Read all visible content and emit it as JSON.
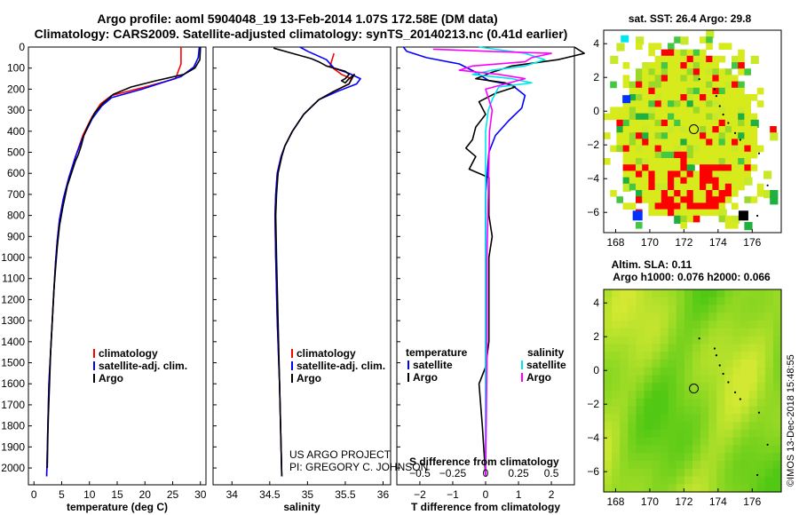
{
  "header": {
    "line1": "Argo profile: aoml 5904048_19 13-Feb-2014 1.07S 172.58E (DM data)",
    "line2": "Climatology: CARS2009. Satellite-adjusted climatology: synTS_20140213.nc (0.41d earlier)"
  },
  "credit": {
    "line1": "US ARGO PROJECT",
    "line2": "PI: GREGORY C. JOHNSON"
  },
  "timestamp": "©IMOS 13-Dec-2018 15:48:55",
  "colors": {
    "climatology": "#ff0000",
    "satellite": "#0000ff",
    "argo": "#000000",
    "sat_salinity": "#00e5ee",
    "argo_salinity": "#ff00ff"
  },
  "chart_data": [
    {
      "id": "temperature",
      "type": "line",
      "xlabel": "temperature (deg C)",
      "ylabel": "",
      "xlim": [
        -1,
        31
      ],
      "ylim": [
        2080,
        0
      ],
      "xticks": [
        0,
        5,
        10,
        15,
        20,
        25,
        30
      ],
      "yticks": [
        0,
        100,
        200,
        300,
        400,
        500,
        600,
        700,
        800,
        900,
        1000,
        1100,
        1200,
        1300,
        1400,
        1500,
        1600,
        1700,
        1800,
        1900,
        2000
      ],
      "legend": [
        "climatology",
        "satellite-adj. clim.",
        "Argo"
      ],
      "series": [
        {
          "name": "climatology",
          "color": "#ff0000",
          "points": [
            [
              26.5,
              0
            ],
            [
              26.5,
              80
            ],
            [
              25.5,
              150
            ],
            [
              20,
              190
            ],
            [
              14,
              230
            ],
            [
              12,
              270
            ],
            [
              10.5,
              330
            ],
            [
              8.8,
              420
            ],
            [
              7.5,
              520
            ],
            [
              6.3,
              620
            ],
            [
              5.3,
              720
            ],
            [
              4.6,
              820
            ],
            [
              4.2,
              920
            ],
            [
              3.9,
              1020
            ],
            [
              3.6,
              1150
            ],
            [
              3.3,
              1300
            ],
            [
              3,
              1450
            ],
            [
              2.7,
              1600
            ],
            [
              2.5,
              1800
            ],
            [
              2.3,
              2040
            ]
          ]
        },
        {
          "name": "satellite-adj. clim.",
          "color": "#0000ff",
          "points": [
            [
              29.8,
              0
            ],
            [
              29.6,
              50
            ],
            [
              28.8,
              95
            ],
            [
              26.5,
              140
            ],
            [
              19.5,
              200
            ],
            [
              14,
              240
            ],
            [
              12.2,
              280
            ],
            [
              10.5,
              340
            ],
            [
              8.8,
              430
            ],
            [
              7.5,
              520
            ],
            [
              6.3,
              620
            ],
            [
              5.3,
              720
            ],
            [
              4.6,
              820
            ],
            [
              4.2,
              920
            ],
            [
              3.9,
              1020
            ],
            [
              3.6,
              1150
            ],
            [
              3.3,
              1300
            ],
            [
              3,
              1450
            ],
            [
              2.7,
              1600
            ],
            [
              2.5,
              1800
            ],
            [
              2.3,
              2040
            ]
          ]
        },
        {
          "name": "Argo",
          "color": "#000000",
          "points": [
            [
              30,
              0
            ],
            [
              29.9,
              60
            ],
            [
              29,
              100
            ],
            [
              27,
              130
            ],
            [
              22,
              160
            ],
            [
              17.5,
              190
            ],
            [
              14.3,
              225
            ],
            [
              12.5,
              265
            ],
            [
              11,
              310
            ],
            [
              9.8,
              370
            ],
            [
              9,
              420
            ],
            [
              8.5,
              470
            ],
            [
              8,
              510
            ],
            [
              7.5,
              540
            ],
            [
              7,
              580
            ],
            [
              6,
              660
            ],
            [
              5.2,
              760
            ],
            [
              4.6,
              850
            ],
            [
              4.2,
              950
            ],
            [
              3.9,
              1050
            ],
            [
              3.6,
              1150
            ],
            [
              3.3,
              1300
            ],
            [
              3,
              1450
            ],
            [
              2.8,
              1600
            ],
            [
              2.6,
              1750
            ],
            [
              2.5,
              1850
            ],
            [
              2.4,
              2000
            ]
          ]
        }
      ]
    },
    {
      "id": "salinity",
      "type": "line",
      "xlabel": "salinity",
      "ylabel": "",
      "xlim": [
        33.75,
        36.1
      ],
      "ylim": [
        2080,
        0
      ],
      "xticks": [
        34,
        34.5,
        35,
        35.5,
        36
      ],
      "legend": [
        "climatology",
        "satellite-adj. clim.",
        "Argo"
      ],
      "series": [
        {
          "name": "climatology",
          "color": "#ff0000",
          "points": [
            [
              35.35,
              30
            ],
            [
              35.3,
              90
            ],
            [
              35.45,
              130
            ],
            [
              35.58,
              150
            ],
            [
              35.55,
              175
            ],
            [
              35.35,
              210
            ],
            [
              35.15,
              250
            ],
            [
              34.95,
              320
            ],
            [
              34.8,
              400
            ],
            [
              34.7,
              470
            ],
            [
              34.65,
              520
            ],
            [
              34.6,
              600
            ],
            [
              34.58,
              700
            ],
            [
              34.57,
              800
            ],
            [
              34.58,
              1000
            ],
            [
              34.6,
              1300
            ],
            [
              34.63,
              1600
            ],
            [
              34.65,
              1900
            ],
            [
              34.66,
              2040
            ]
          ]
        },
        {
          "name": "satellite-adj. clim.",
          "color": "#0000ff",
          "points": [
            [
              34.9,
              0
            ],
            [
              35,
              20
            ],
            [
              35.25,
              60
            ],
            [
              35.35,
              100
            ],
            [
              35.55,
              125
            ],
            [
              35.7,
              150
            ],
            [
              35.65,
              175
            ],
            [
              35.4,
              210
            ],
            [
              35.15,
              250
            ],
            [
              34.95,
              320
            ],
            [
              34.8,
              400
            ],
            [
              34.7,
              470
            ],
            [
              34.65,
              520
            ],
            [
              34.6,
              600
            ],
            [
              34.58,
              700
            ],
            [
              34.57,
              800
            ],
            [
              34.58,
              1000
            ],
            [
              34.6,
              1300
            ],
            [
              34.63,
              1600
            ],
            [
              34.65,
              1900
            ],
            [
              34.66,
              2040
            ]
          ]
        },
        {
          "name": "Argo",
          "color": "#000000",
          "points": [
            [
              34.55,
              5
            ],
            [
              34.8,
              30
            ],
            [
              35.05,
              55
            ],
            [
              35.15,
              70
            ],
            [
              35.25,
              90
            ],
            [
              35.35,
              100
            ],
            [
              35.5,
              115
            ],
            [
              35.55,
              130
            ],
            [
              35.5,
              150
            ],
            [
              35.45,
              160
            ],
            [
              35.5,
              170
            ],
            [
              35.55,
              150
            ],
            [
              35.62,
              130
            ],
            [
              35.55,
              175
            ],
            [
              35.35,
              210
            ],
            [
              35.15,
              250
            ],
            [
              34.95,
              320
            ],
            [
              34.8,
              400
            ],
            [
              34.7,
              470
            ],
            [
              34.66,
              520
            ],
            [
              34.61,
              600
            ],
            [
              34.59,
              700
            ],
            [
              34.58,
              800
            ],
            [
              34.59,
              1000
            ],
            [
              34.61,
              1300
            ],
            [
              34.63,
              1600
            ],
            [
              34.65,
              1900
            ],
            [
              34.66,
              2040
            ]
          ]
        }
      ]
    },
    {
      "id": "differences",
      "type": "line",
      "xlabel": "T difference from climatology",
      "xlabel_top": "S difference from climatology",
      "xlim": [
        -2.7,
        2.7
      ],
      "ylim": [
        2080,
        0
      ],
      "xticks": [
        -2,
        -1,
        0,
        1,
        2
      ],
      "xticks_salinity": [
        -0.5,
        -0.25,
        0,
        0.25,
        0.5
      ],
      "legend_temperature": {
        "title": "temperature",
        "items": [
          "satellite",
          "Argo"
        ]
      },
      "legend_salinity": {
        "title": "salinity",
        "items": [
          "satellite",
          "Argo"
        ]
      },
      "series": [
        {
          "name": "temperature satellite",
          "color": "#0000ff",
          "points": [
            [
              -2.5,
              0
            ],
            [
              -2.4,
              20
            ],
            [
              -1.8,
              50
            ],
            [
              -0.8,
              80
            ],
            [
              -0.3,
              120
            ],
            [
              0.1,
              160
            ],
            [
              0.8,
              180
            ],
            [
              1.2,
              230
            ],
            [
              1.1,
              290
            ],
            [
              0.7,
              350
            ],
            [
              0.3,
              420
            ],
            [
              0.1,
              500
            ],
            [
              0,
              700
            ],
            [
              0,
              1000
            ],
            [
              0,
              1500
            ],
            [
              0,
              2040
            ]
          ]
        },
        {
          "name": "temperature Argo",
          "color": "#000000",
          "points": [
            [
              2.7,
              0
            ],
            [
              3,
              30
            ],
            [
              2.2,
              60
            ],
            [
              0.8,
              90
            ],
            [
              0.2,
              120
            ],
            [
              -0.3,
              150
            ],
            [
              0.6,
              170
            ],
            [
              0.9,
              190
            ],
            [
              0.3,
              220
            ],
            [
              -0.2,
              260
            ],
            [
              0,
              320
            ],
            [
              -0.3,
              380
            ],
            [
              -0.4,
              440
            ],
            [
              -0.6,
              480
            ],
            [
              -0.3,
              520
            ],
            [
              -0.5,
              580
            ],
            [
              0.1,
              620
            ],
            [
              0.1,
              800
            ],
            [
              0.2,
              900
            ],
            [
              0.1,
              1000
            ],
            [
              0.1,
              1400
            ],
            [
              0,
              1520
            ],
            [
              -0.2,
              1600
            ],
            [
              -0.1,
              1800
            ],
            [
              0,
              2040
            ]
          ]
        },
        {
          "name": "salinity satellite",
          "color": "#00e5ee",
          "points": [
            [
              -0.05,
              0
            ],
            [
              0.3,
              30
            ],
            [
              0.45,
              60
            ],
            [
              0.3,
              90
            ],
            [
              0.05,
              110
            ],
            [
              -0.1,
              130
            ],
            [
              0.2,
              150
            ],
            [
              0.35,
              170
            ],
            [
              0.1,
              190
            ],
            [
              0.05,
              250
            ],
            [
              0.02,
              300
            ],
            [
              0,
              400
            ],
            [
              0,
              1500
            ],
            [
              0,
              2040
            ]
          ]
        },
        {
          "name": "salinity Argo",
          "color": "#ff00ff",
          "points": [
            [
              -0.4,
              10
            ],
            [
              0,
              20
            ],
            [
              0.5,
              30
            ],
            [
              0.35,
              50
            ],
            [
              0.3,
              70
            ],
            [
              -0.1,
              90
            ],
            [
              -0.2,
              110
            ],
            [
              0.1,
              130
            ],
            [
              0.3,
              150
            ],
            [
              0,
              200
            ],
            [
              0.05,
              300
            ],
            [
              0.03,
              400
            ],
            [
              0.02,
              700
            ],
            [
              0.01,
              1000
            ],
            [
              0.01,
              1500
            ],
            [
              0,
              2040
            ]
          ]
        }
      ]
    },
    {
      "id": "sst_map",
      "type": "heatmap",
      "title": "sat. SST: 26.4 Argo: 29.8",
      "xticks": [
        168,
        170,
        172,
        174,
        176
      ],
      "yticks": [
        4,
        2,
        0,
        -2,
        -4,
        -6
      ],
      "xlim": [
        167.3,
        177.7
      ],
      "ylim": [
        -7.2,
        4.8
      ],
      "marker": [
        172.58,
        -1.07
      ],
      "land_points": [
        [
          173.8,
          1.3
        ],
        [
          173.9,
          0.9
        ],
        [
          174.1,
          0.3
        ],
        [
          174.3,
          -0.2
        ],
        [
          174.6,
          -0.7
        ],
        [
          175,
          -1.3
        ],
        [
          175.3,
          -1.7
        ],
        [
          176.4,
          -2.5
        ],
        [
          172.9,
          1.9
        ],
        [
          176.9,
          -4.4
        ],
        [
          176.3,
          -6.2
        ]
      ]
    },
    {
      "id": "ssh_map",
      "type": "heatmap",
      "title": "Altim. SLA: 0.11",
      "subtitle": "Argo h1000: 0.076 h2000: 0.066",
      "xticks": [
        168,
        170,
        172,
        174,
        176
      ],
      "yticks": [
        4,
        2,
        0,
        -2,
        -4,
        -6
      ],
      "xlim": [
        167.3,
        177.7
      ],
      "ylim": [
        -7.2,
        4.8
      ],
      "marker": [
        172.58,
        -1.07
      ],
      "land_points": [
        [
          173.8,
          1.3
        ],
        [
          173.9,
          0.9
        ],
        [
          174.1,
          0.3
        ],
        [
          174.3,
          -0.2
        ],
        [
          174.6,
          -0.7
        ],
        [
          175,
          -1.3
        ],
        [
          175.3,
          -1.7
        ],
        [
          176.4,
          -2.5
        ],
        [
          172.9,
          1.9
        ],
        [
          176.9,
          -4.4
        ],
        [
          176.3,
          -6.2
        ]
      ]
    }
  ]
}
